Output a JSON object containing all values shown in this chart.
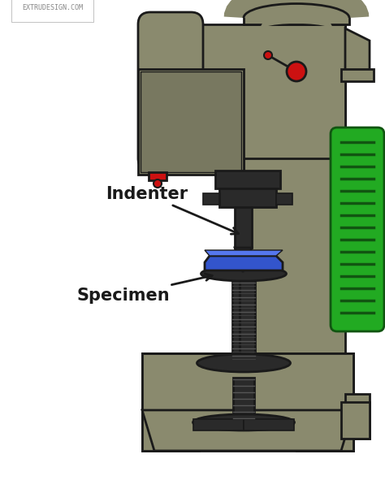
{
  "background_color": "#ffffff",
  "machine_color": "#8a8a6e",
  "outline_color": "#1a1a1a",
  "black_color": "#1a1a1a",
  "dark_color": "#2a2a2a",
  "red_color": "#cc1111",
  "green_color": "#22aa22",
  "blue_color": "#3355cc",
  "blue_light": "#5577ee",
  "rib_color": "#115511",
  "text_indenter": "Indenter",
  "text_specimen": "Specimen",
  "watermark": "EXTRUDESIGN.COM",
  "label_fontsize": 15,
  "watermark_fontsize": 6,
  "lw": 2.0
}
